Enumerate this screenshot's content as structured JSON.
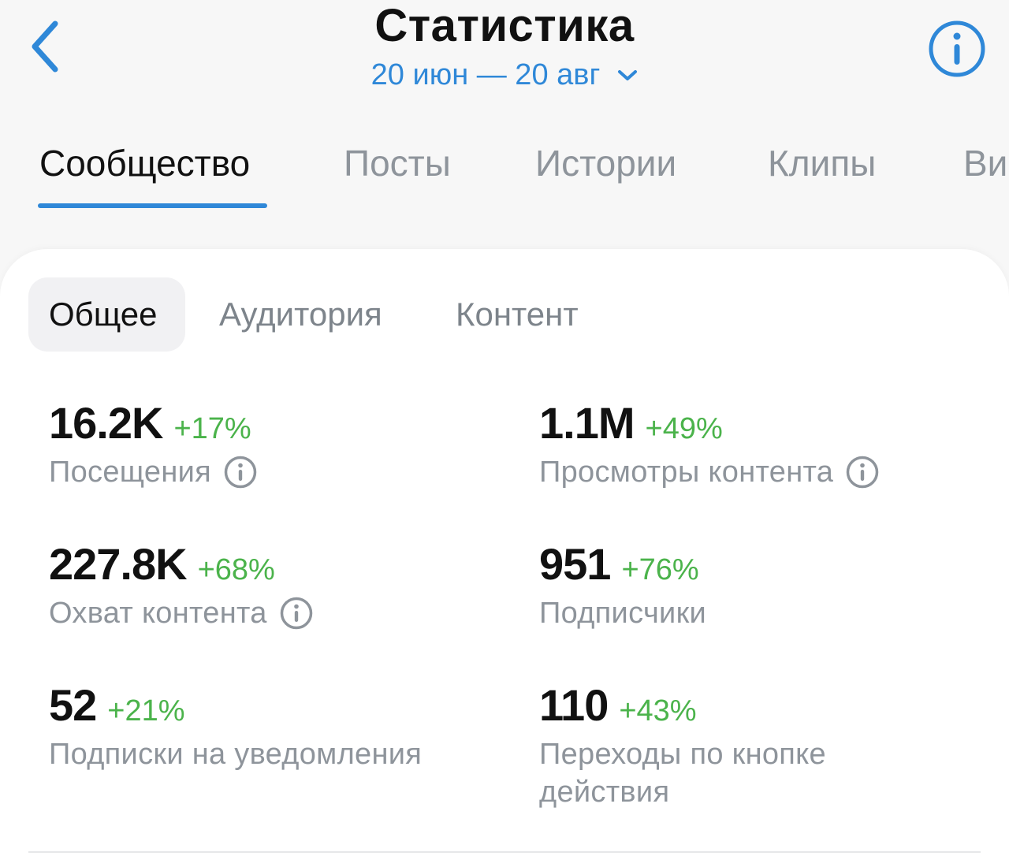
{
  "header": {
    "title": "Статистика",
    "date_range": "20 июн — 20 авг"
  },
  "main_tabs": [
    "Сообщество",
    "Посты",
    "Истории",
    "Клипы",
    "Ви"
  ],
  "sub_tabs": [
    "Общее",
    "Аудитория",
    "Контент"
  ],
  "metrics": [
    {
      "value": "16.2K",
      "delta": "+17%",
      "label": "Посещения"
    },
    {
      "value": "1.1M",
      "delta": "+49%",
      "label": "Просмотры контента"
    },
    {
      "value": "227.8K",
      "delta": "+68%",
      "label": "Охват контента"
    },
    {
      "value": "951",
      "delta": "+76%",
      "label": "Подписчики"
    },
    {
      "value": "52",
      "delta": "+21%",
      "label": "Подписки на уведомления"
    },
    {
      "value": "110",
      "delta": "+43%",
      "label": "Переходы по кнопке действия"
    }
  ],
  "colors": {
    "accent": "#2f88d8",
    "positive": "#4bb34b",
    "muted_text": "#8e949b",
    "text": "#111111"
  }
}
